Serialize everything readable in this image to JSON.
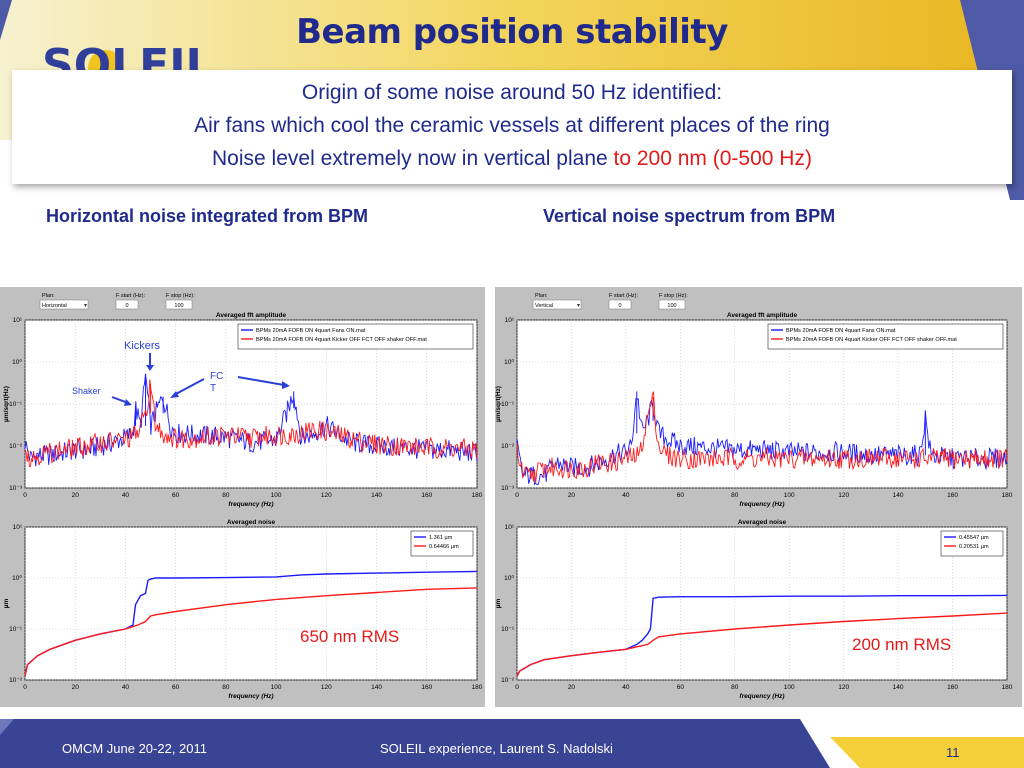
{
  "slide": {
    "title": "Beam position stability",
    "logo_text": "SOLEIL",
    "callout": {
      "line1": "Origin of some noise around 50 Hz identified:",
      "line2": "Air fans which cool the ceramic vessels at different places of the ring",
      "line3_blue": "Noise level extremely now in vertical plane ",
      "line3_red": "to 200 nm (0-500 Hz)"
    },
    "captions": {
      "left": "Horizontal noise integrated from BPM",
      "right": "Vertical noise spectrum from BPM"
    },
    "annotations": {
      "kickers": "Kickers",
      "shaker": "Shaker",
      "fct": "FC T",
      "rms_left": "650 nm RMS",
      "rms_right": "200 nm RMS"
    },
    "footer": {
      "left": "OMCM June 20-22, 2011",
      "center": "SOLEIL experience, Laurent S. Nadolski",
      "page": "11"
    },
    "colors": {
      "title": "#1f2a8c",
      "red": "#e31a1a",
      "blue_series": "#1a1aff",
      "red_series": "#ff1a1a"
    }
  },
  "chart_data": [
    {
      "type": "line",
      "title": "Averaged fft amplitude",
      "controls": {
        "plan_label": "Plan:",
        "plan_value": "Horizontal",
        "fstart_label": "F start (Hz):",
        "fstart_value": "0",
        "fstop_label": "F stop (Hz):",
        "fstop_value": "100"
      },
      "xlabel": "frequency (Hz)",
      "ylabel": "µm/sqrt(Hz)",
      "xlim": [
        0,
        180
      ],
      "ylim": [
        0.001,
        10
      ],
      "yscale": "log",
      "xticks": [
        "0",
        "20",
        "40",
        "60",
        "80",
        "100",
        "120",
        "140",
        "160",
        "180"
      ],
      "yticks": [
        "10⁻³",
        "10⁻²",
        "10⁻¹",
        "10⁰",
        "10¹"
      ],
      "grid": true,
      "legend_position": "top-right",
      "series": [
        {
          "name": "BPMs 20mA FOFB ON 4quart Fans ON.mat",
          "color": "#1a1aff",
          "x": [
            0,
            2,
            5,
            10,
            15,
            20,
            25,
            30,
            35,
            40,
            43,
            44,
            46,
            48,
            50,
            52,
            55,
            58,
            60,
            70,
            80,
            90,
            100,
            105,
            107,
            110,
            115,
            120,
            130,
            140,
            150,
            160,
            170,
            175,
            180
          ],
          "y": [
            0.012,
            0.005,
            0.006,
            0.006,
            0.007,
            0.008,
            0.008,
            0.01,
            0.012,
            0.016,
            0.02,
            0.08,
            0.03,
            0.5,
            0.03,
            0.06,
            0.15,
            0.03,
            0.02,
            0.018,
            0.016,
            0.012,
            0.014,
            0.08,
            0.2,
            0.015,
            0.02,
            0.03,
            0.012,
            0.01,
            0.009,
            0.008,
            0.008,
            0.007,
            0.007
          ]
        },
        {
          "name": "BPMs 20mA FOFB ON 4quart Kicker OFF FCT OFF shaker OFF.mat",
          "color": "#ff1a1a",
          "x": [
            0,
            2,
            5,
            10,
            15,
            20,
            25,
            30,
            35,
            40,
            45,
            48,
            50,
            52,
            55,
            60,
            70,
            80,
            90,
            100,
            110,
            115,
            120,
            130,
            140,
            150,
            160,
            170,
            180
          ],
          "y": [
            0.01,
            0.005,
            0.006,
            0.007,
            0.008,
            0.009,
            0.01,
            0.012,
            0.013,
            0.014,
            0.02,
            0.06,
            0.3,
            0.03,
            0.02,
            0.015,
            0.016,
            0.018,
            0.016,
            0.018,
            0.02,
            0.025,
            0.022,
            0.015,
            0.011,
            0.01,
            0.009,
            0.009,
            0.008
          ]
        }
      ]
    },
    {
      "type": "line",
      "title": "Averaged noise",
      "xlabel": "frequency (Hz)",
      "ylabel": "µm",
      "xlim": [
        0,
        180
      ],
      "ylim": [
        0.01,
        10
      ],
      "yscale": "log",
      "xticks": [
        "0",
        "20",
        "40",
        "60",
        "80",
        "100",
        "120",
        "140",
        "160",
        "180"
      ],
      "yticks": [
        "10⁻²",
        "10⁻¹",
        "10⁰",
        "10¹"
      ],
      "grid": true,
      "legend_position": "top-right",
      "series": [
        {
          "name": "1.361 µm",
          "color": "#1a1aff",
          "x": [
            0,
            1,
            5,
            10,
            20,
            30,
            40,
            43,
            44,
            46,
            48,
            49,
            50,
            52,
            60,
            80,
            100,
            110,
            120,
            140,
            160,
            180
          ],
          "y": [
            0.012,
            0.02,
            0.03,
            0.04,
            0.06,
            0.08,
            0.1,
            0.12,
            0.3,
            0.45,
            0.5,
            0.9,
            0.95,
            1.0,
            1.0,
            1.02,
            1.05,
            1.15,
            1.2,
            1.25,
            1.3,
            1.35
          ]
        },
        {
          "name": "0.64466 µm",
          "color": "#ff1a1a",
          "x": [
            0,
            1,
            5,
            10,
            20,
            30,
            40,
            45,
            48,
            50,
            52,
            60,
            80,
            100,
            120,
            140,
            160,
            180
          ],
          "y": [
            0.012,
            0.02,
            0.03,
            0.04,
            0.06,
            0.08,
            0.1,
            0.12,
            0.14,
            0.18,
            0.19,
            0.22,
            0.3,
            0.38,
            0.45,
            0.52,
            0.6,
            0.64
          ]
        }
      ]
    },
    {
      "type": "line",
      "title": "Averaged fft amplitude",
      "controls": {
        "plan_label": "Plan:",
        "plan_value": "Vertical",
        "fstart_label": "F start (Hz):",
        "fstart_value": "0",
        "fstop_label": "F stop (Hz):",
        "fstop_value": "100"
      },
      "xlabel": "frequency (Hz)",
      "ylabel": "µm/sqrt(Hz)",
      "xlim": [
        0,
        180
      ],
      "ylim": [
        0.001,
        10
      ],
      "yscale": "log",
      "xticks": [
        "0",
        "20",
        "40",
        "60",
        "80",
        "100",
        "120",
        "140",
        "160",
        "180"
      ],
      "yticks": [
        "10⁻³",
        "10⁻²",
        "10⁻¹",
        "10⁰",
        "10¹"
      ],
      "grid": true,
      "legend_position": "top-right",
      "series": [
        {
          "name": "BPMs 20mA FOFB ON 4quart Fans ON.mat",
          "color": "#1a1aff",
          "x": [
            0,
            2,
            5,
            10,
            15,
            20,
            25,
            30,
            35,
            40,
            42,
            44,
            46,
            48,
            50,
            52,
            55,
            60,
            70,
            80,
            90,
            100,
            110,
            120,
            130,
            140,
            148,
            150,
            152,
            160,
            170,
            180
          ],
          "y": [
            0.01,
            0.002,
            0.002,
            0.002,
            0.004,
            0.003,
            0.003,
            0.004,
            0.006,
            0.007,
            0.01,
            0.2,
            0.02,
            0.04,
            0.1,
            0.02,
            0.015,
            0.01,
            0.009,
            0.008,
            0.008,
            0.007,
            0.007,
            0.007,
            0.006,
            0.006,
            0.006,
            0.05,
            0.006,
            0.005,
            0.005,
            0.005
          ]
        },
        {
          "name": "BPMs 20mA FOFB ON 4quart Kicker OFF FCT OFF shaker OFF.mat",
          "color": "#ff1a1a",
          "x": [
            0,
            2,
            5,
            10,
            15,
            20,
            25,
            30,
            35,
            40,
            45,
            48,
            50,
            52,
            55,
            60,
            70,
            80,
            90,
            100,
            110,
            120,
            130,
            140,
            150,
            160,
            170,
            180
          ],
          "y": [
            0.01,
            0.002,
            0.002,
            0.003,
            0.003,
            0.003,
            0.003,
            0.004,
            0.004,
            0.005,
            0.006,
            0.05,
            0.15,
            0.01,
            0.006,
            0.005,
            0.005,
            0.005,
            0.005,
            0.005,
            0.005,
            0.005,
            0.005,
            0.005,
            0.005,
            0.005,
            0.005,
            0.005
          ]
        }
      ]
    },
    {
      "type": "line",
      "title": "Averaged noise",
      "xlabel": "frequency (Hz)",
      "ylabel": "µm",
      "xlim": [
        0,
        180
      ],
      "ylim": [
        0.01,
        10
      ],
      "yscale": "log",
      "xticks": [
        "0",
        "20",
        "40",
        "60",
        "80",
        "100",
        "120",
        "140",
        "160",
        "180"
      ],
      "yticks": [
        "10⁻²",
        "10⁻¹",
        "10⁰",
        "10¹"
      ],
      "grid": true,
      "legend_position": "top-right",
      "series": [
        {
          "name": "0.45547 µm",
          "color": "#1a1aff",
          "x": [
            0,
            1,
            5,
            10,
            20,
            30,
            40,
            44,
            46,
            48,
            49,
            50,
            52,
            60,
            80,
            100,
            120,
            140,
            160,
            180
          ],
          "y": [
            0.012,
            0.015,
            0.02,
            0.025,
            0.03,
            0.035,
            0.04,
            0.05,
            0.06,
            0.08,
            0.1,
            0.4,
            0.42,
            0.43,
            0.43,
            0.44,
            0.44,
            0.45,
            0.45,
            0.455
          ]
        },
        {
          "name": "0.20531 µm",
          "color": "#ff1a1a",
          "x": [
            0,
            1,
            5,
            10,
            20,
            30,
            40,
            48,
            50,
            52,
            60,
            80,
            100,
            120,
            140,
            160,
            180
          ],
          "y": [
            0.012,
            0.015,
            0.02,
            0.025,
            0.03,
            0.035,
            0.04,
            0.05,
            0.06,
            0.07,
            0.08,
            0.1,
            0.12,
            0.14,
            0.16,
            0.18,
            0.205
          ]
        }
      ]
    }
  ]
}
